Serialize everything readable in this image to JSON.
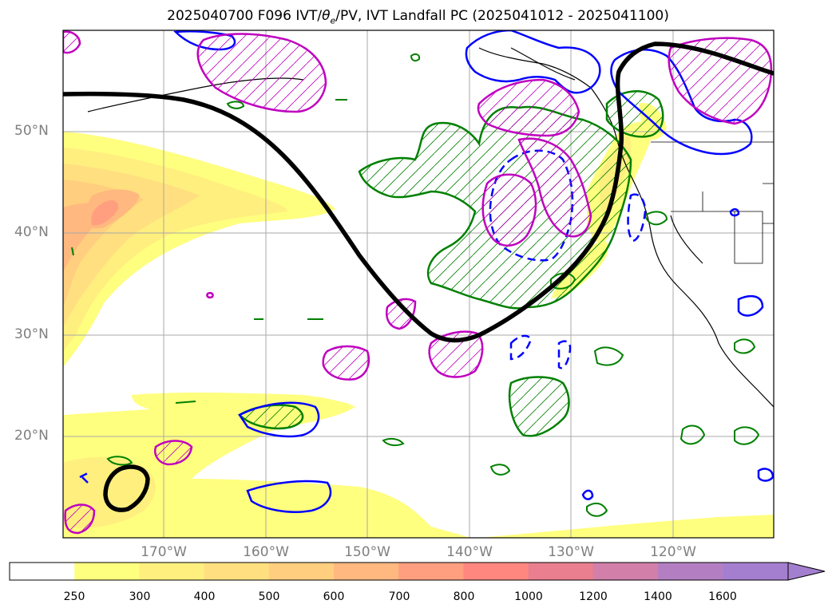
{
  "title": {
    "part1": "2025040700 F096 IVT/",
    "theta": "θ",
    "sub": "e",
    "part2": "/PV, IVT Landfall PC (2025041012 - 2025041100)"
  },
  "map": {
    "lat_labels": [
      "50°N",
      "40°N",
      "30°N",
      "20°N"
    ],
    "lon_labels": [
      "170°W",
      "160°W",
      "150°W",
      "140°W",
      "130°W",
      "120°W"
    ],
    "colors": {
      "pc_contour": "#000000",
      "theta_e": "#008000",
      "pv_pos": "#0000ff",
      "pv_hatched": "#bf00bf",
      "coast": "#000000"
    }
  },
  "colorbar": {
    "ticks": [
      "250",
      "300",
      "400",
      "500",
      "600",
      "700",
      "800",
      "1000",
      "1200",
      "1400",
      "1600"
    ],
    "colors": [
      "#ffffff",
      "#ffff7f",
      "#ffef7f",
      "#ffdf7f",
      "#ffcf7f",
      "#ffb87f",
      "#ff9f7f",
      "#ff877f",
      "#e97f8f",
      "#d27faa",
      "#b47fc2",
      "#a57fcf"
    ]
  }
}
